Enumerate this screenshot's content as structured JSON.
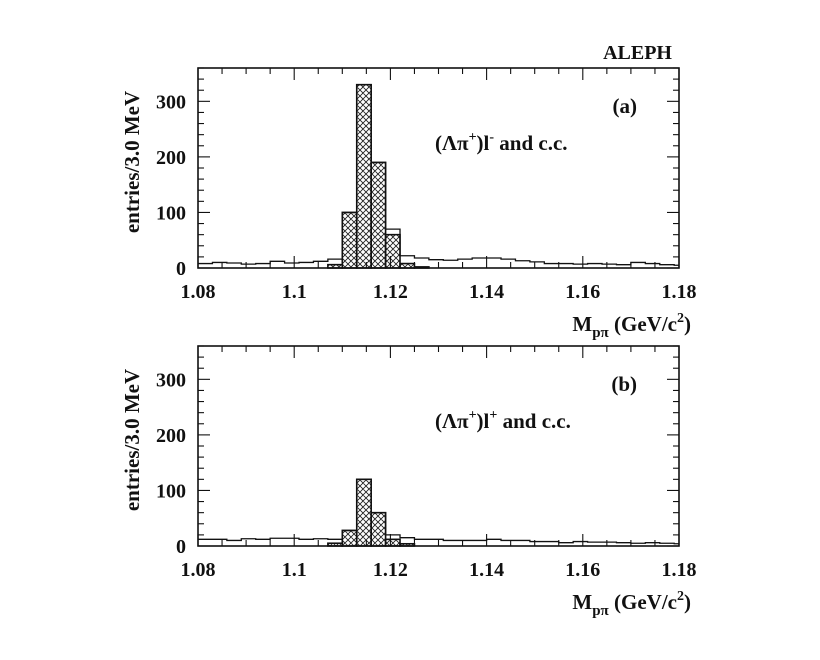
{
  "figure": {
    "label": "ALEPH"
  },
  "chart_data": [
    {
      "type": "histogram",
      "panel_label": "(a)",
      "annotation": {
        "main": "(Λπ",
        "sup1": "+",
        "mid": ")l",
        "sup2": "-",
        "end": " and c.c."
      },
      "ylabel": "entries/3.0 MeV",
      "xlabel": {
        "main": "M",
        "sub": "pπ",
        "unit_main": " (GeV/c",
        "unit_sup": "2",
        "unit_end": ")"
      },
      "xlim": [
        1.08,
        1.18
      ],
      "ylim": [
        0,
        360
      ],
      "x_ticks": [
        "1.08",
        "1.1",
        "1.12",
        "1.14",
        "1.16",
        "1.18"
      ],
      "y_ticks": [
        "0",
        "100",
        "200",
        "300"
      ],
      "total": {
        "bin_edges": [
          1.08,
          1.083,
          1.086,
          1.089,
          1.092,
          1.095,
          1.098,
          1.101,
          1.104,
          1.107,
          1.11,
          1.113,
          1.116,
          1.119,
          1.122,
          1.125,
          1.128,
          1.131,
          1.134,
          1.137,
          1.14,
          1.143,
          1.146,
          1.149,
          1.152,
          1.155,
          1.158,
          1.161,
          1.164,
          1.167,
          1.17,
          1.173,
          1.176,
          1.179,
          1.18
        ],
        "counts": [
          8,
          10,
          9,
          7,
          8,
          12,
          9,
          10,
          12,
          16,
          100,
          330,
          190,
          70,
          22,
          18,
          15,
          14,
          16,
          18,
          18,
          16,
          13,
          11,
          8,
          8,
          7,
          8,
          7,
          6,
          10,
          8,
          6,
          5
        ]
      },
      "signal": {
        "bin_edges": [
          1.107,
          1.11,
          1.113,
          1.116,
          1.119,
          1.122,
          1.125,
          1.128
        ],
        "counts": [
          6,
          100,
          330,
          190,
          60,
          8,
          2
        ]
      }
    },
    {
      "type": "histogram",
      "panel_label": "(b)",
      "annotation": {
        "main": "(Λπ",
        "sup1": "+",
        "mid": ")l",
        "sup2": "+",
        "end": " and c.c."
      },
      "ylabel": "entries/3.0 MeV",
      "xlabel": {
        "main": "M",
        "sub": "pπ",
        "unit_main": " (GeV/c",
        "unit_sup": "2",
        "unit_end": ")"
      },
      "xlim": [
        1.08,
        1.18
      ],
      "ylim": [
        0,
        360
      ],
      "x_ticks": [
        "1.08",
        "1.1",
        "1.12",
        "1.14",
        "1.16",
        "1.18"
      ],
      "y_ticks": [
        "0",
        "100",
        "200",
        "300"
      ],
      "total": {
        "bin_edges": [
          1.08,
          1.083,
          1.086,
          1.089,
          1.092,
          1.095,
          1.098,
          1.101,
          1.104,
          1.107,
          1.11,
          1.113,
          1.116,
          1.119,
          1.122,
          1.125,
          1.128,
          1.131,
          1.134,
          1.137,
          1.14,
          1.143,
          1.146,
          1.149,
          1.152,
          1.155,
          1.158,
          1.161,
          1.164,
          1.167,
          1.17,
          1.173,
          1.176,
          1.179,
          1.18
        ],
        "counts": [
          12,
          12,
          10,
          13,
          12,
          14,
          14,
          12,
          13,
          12,
          28,
          120,
          60,
          20,
          15,
          12,
          12,
          10,
          10,
          10,
          12,
          10,
          10,
          8,
          8,
          6,
          8,
          7,
          7,
          6,
          5,
          6,
          5,
          4
        ]
      },
      "signal": {
        "bin_edges": [
          1.107,
          1.11,
          1.113,
          1.116,
          1.119,
          1.122,
          1.125
        ],
        "counts": [
          5,
          28,
          120,
          60,
          12,
          4
        ]
      }
    }
  ]
}
